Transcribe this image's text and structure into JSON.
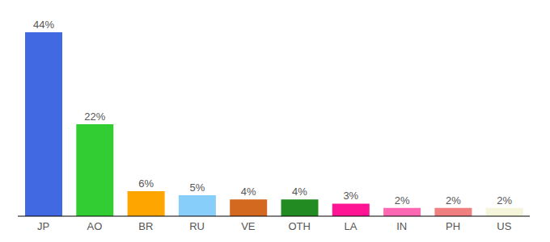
{
  "chart_data": {
    "type": "bar",
    "categories": [
      "JP",
      "AO",
      "BR",
      "RU",
      "VE",
      "OTH",
      "LA",
      "IN",
      "PH",
      "US"
    ],
    "values": [
      44,
      22,
      6,
      5,
      4,
      4,
      3,
      2,
      2,
      2
    ],
    "value_labels": [
      "44%",
      "22%",
      "6%",
      "5%",
      "4%",
      "4%",
      "3%",
      "2%",
      "2%",
      "2%"
    ],
    "colors": [
      "#4169e1",
      "#32cd32",
      "#ffa500",
      "#87cefa",
      "#d2691e",
      "#228b22",
      "#ff1493",
      "#ff69b4",
      "#f08080",
      "#f5f5dc"
    ],
    "ylim": [
      0,
      44
    ],
    "grid": false,
    "data_labels": true,
    "tick_labels": "x"
  }
}
